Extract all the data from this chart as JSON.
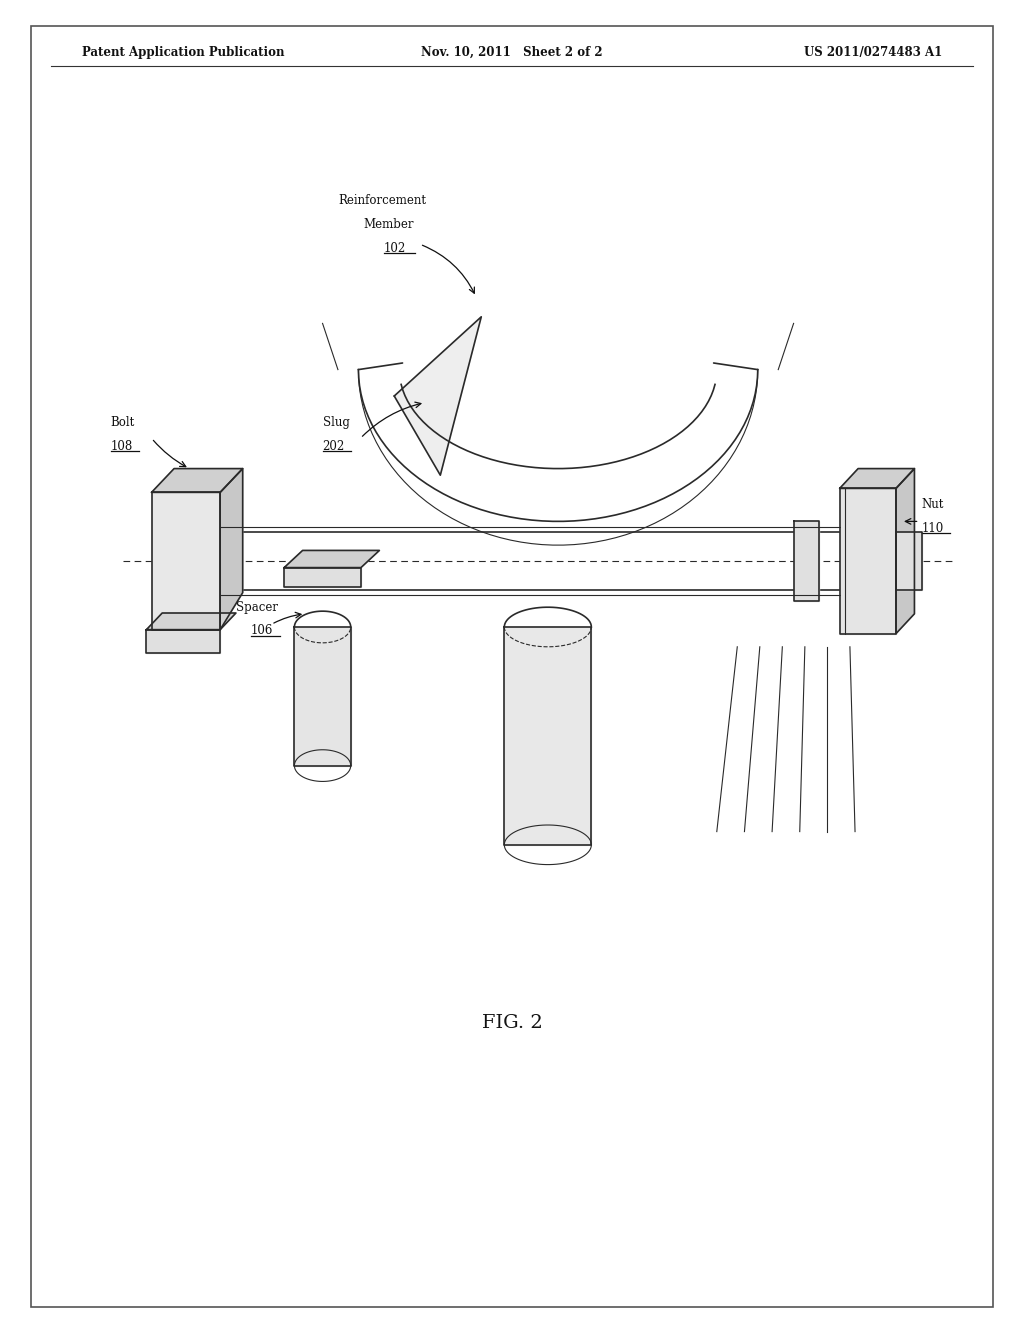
{
  "bg_color": "#ffffff",
  "line_color": "#2a2a2a",
  "header_left": "Patent Application Publication",
  "header_mid": "Nov. 10, 2011   Sheet 2 of 2",
  "header_right": "US 2011/0274483 A1",
  "fig_caption": "FIG. 2"
}
